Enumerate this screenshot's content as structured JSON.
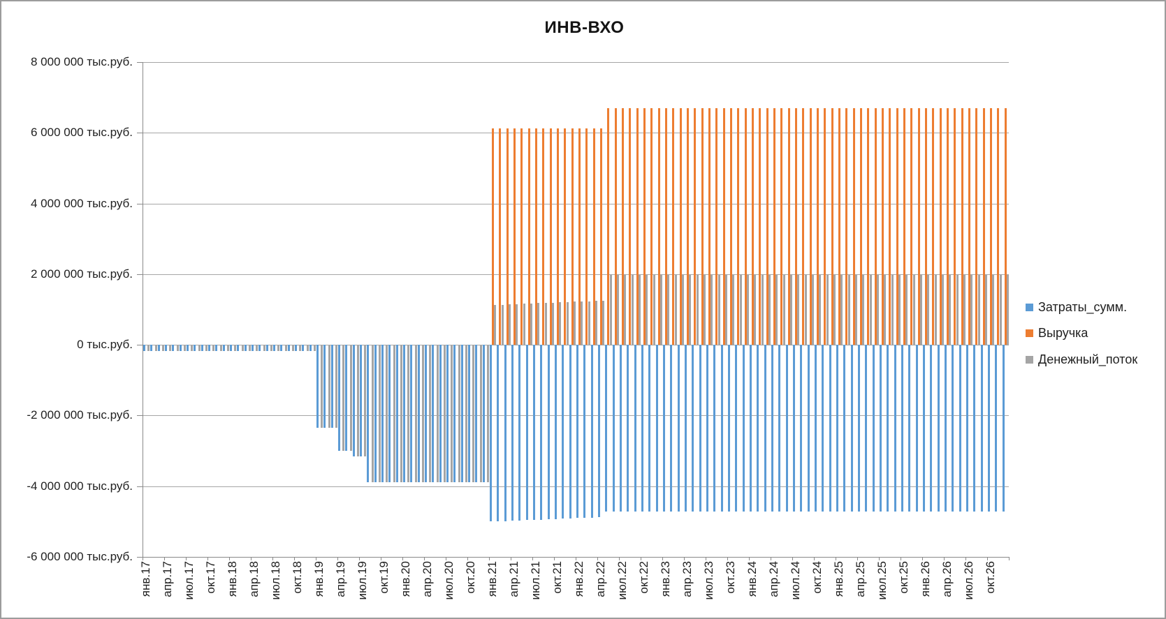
{
  "chart_data": {
    "type": "bar",
    "title": "ИНВ-ВХО",
    "y_unit": "тыс.руб.",
    "ylim": [
      -6000000,
      8000000
    ],
    "y_tick_step": 2000000,
    "grid": "horizontal",
    "legend_position": "right",
    "y_tick_labels": [
      "8 000 000 тыс.руб.",
      "6 000 000 тыс.руб.",
      "4 000 000 тыс.руб.",
      "2 000 000 тыс.руб.",
      "0 тыс.руб.",
      "-2 000 000 тыс.руб.",
      "-4 000 000 тыс.руб.",
      "-6 000 000 тыс.руб."
    ],
    "x_tick_labels": [
      "янв.17",
      "апр.17",
      "июл.17",
      "окт.17",
      "янв.18",
      "апр.18",
      "июл.18",
      "окт.18",
      "янв.19",
      "апр.19",
      "июл.19",
      "окт.19",
      "янв.20",
      "апр.20",
      "июл.20",
      "окт.20",
      "янв.21",
      "апр.21",
      "июл.21",
      "окт.21",
      "янв.22",
      "апр.22",
      "июл.22",
      "окт.22",
      "янв.23",
      "апр.23",
      "июл.23",
      "окт.23",
      "янв.24",
      "апр.24",
      "июл.24",
      "окт.24",
      "янв.25",
      "апр.25",
      "июл.25",
      "окт.25",
      "янв.26",
      "апр.26",
      "июл.26",
      "окт.26"
    ],
    "categories": [
      "янв.17",
      "фев.17",
      "мар.17",
      "апр.17",
      "май.17",
      "июн.17",
      "июл.17",
      "авг.17",
      "сен.17",
      "окт.17",
      "ноя.17",
      "дек.17",
      "янв.18",
      "фев.18",
      "мар.18",
      "апр.18",
      "май.18",
      "июн.18",
      "июл.18",
      "авг.18",
      "сен.18",
      "окт.18",
      "ноя.18",
      "дек.18",
      "янв.19",
      "фев.19",
      "мар.19",
      "апр.19",
      "май.19",
      "июн.19",
      "июл.19",
      "авг.19",
      "сен.19",
      "окт.19",
      "ноя.19",
      "дек.19",
      "янв.20",
      "фев.20",
      "мар.20",
      "апр.20",
      "май.20",
      "июн.20",
      "июл.20",
      "авг.20",
      "сен.20",
      "окт.20",
      "ноя.20",
      "дек.20",
      "янв.21",
      "фев.21",
      "мар.21",
      "апр.21",
      "май.21",
      "июн.21",
      "июл.21",
      "авг.21",
      "сен.21",
      "окт.21",
      "ноя.21",
      "дек.21",
      "янв.22",
      "фев.22",
      "мар.22",
      "апр.22",
      "май.22",
      "июн.22",
      "июл.22",
      "авг.22",
      "сен.22",
      "окт.22",
      "ноя.22",
      "дек.22",
      "янв.23",
      "фев.23",
      "мар.23",
      "апр.23",
      "май.23",
      "июн.23",
      "июл.23",
      "авг.23",
      "сен.23",
      "окт.23",
      "ноя.23",
      "дек.23",
      "янв.24",
      "фев.24",
      "мар.24",
      "апр.24",
      "май.24",
      "июн.24",
      "июл.24",
      "авг.24",
      "сен.24",
      "окт.24",
      "ноя.24",
      "дек.24",
      "янв.25",
      "фев.25",
      "мар.25",
      "апр.25",
      "май.25",
      "июн.25",
      "июл.25",
      "авг.25",
      "сен.25",
      "окт.25",
      "ноя.25",
      "дек.25",
      "янв.26",
      "фев.26",
      "мар.26",
      "апр.26",
      "май.26",
      "июн.26",
      "июл.26",
      "авг.26",
      "сен.26",
      "окт.26",
      "ноя.26",
      "дек.26"
    ],
    "series": [
      {
        "name": "Затраты_сумм.",
        "color": "#5B9BD5",
        "values": [
          -180000,
          -180000,
          -180000,
          -180000,
          -180000,
          -180000,
          -180000,
          -180000,
          -180000,
          -180000,
          -180000,
          -180000,
          -180000,
          -180000,
          -180000,
          -180000,
          -180000,
          -180000,
          -180000,
          -180000,
          -180000,
          -180000,
          -180000,
          -180000,
          -2350000,
          -2350000,
          -2350000,
          -3000000,
          -3000000,
          -3160000,
          -3160000,
          -3880000,
          -3880000,
          -3880000,
          -3880000,
          -3880000,
          -3880000,
          -3880000,
          -3880000,
          -3880000,
          -3880000,
          -3880000,
          -3880000,
          -3880000,
          -3880000,
          -3880000,
          -3880000,
          -3880000,
          -5000000,
          -4992000,
          -4984000,
          -4976000,
          -4968000,
          -4960000,
          -4952000,
          -4944000,
          -4936000,
          -4928000,
          -4920000,
          -4912000,
          -4904000,
          -4896000,
          -4888000,
          -4880000,
          -4720000,
          -4720000,
          -4720000,
          -4720000,
          -4720000,
          -4720000,
          -4720000,
          -4720000,
          -4720000,
          -4720000,
          -4720000,
          -4720000,
          -4720000,
          -4720000,
          -4720000,
          -4720000,
          -4720000,
          -4720000,
          -4720000,
          -4720000,
          -4720000,
          -4720000,
          -4720000,
          -4720000,
          -4720000,
          -4720000,
          -4720000,
          -4720000,
          -4720000,
          -4720000,
          -4720000,
          -4720000,
          -4720000,
          -4720000,
          -4720000,
          -4720000,
          -4720000,
          -4720000,
          -4720000,
          -4720000,
          -4720000,
          -4720000,
          -4720000,
          -4720000,
          -4720000,
          -4720000,
          -4720000,
          -4720000,
          -4720000,
          -4720000,
          -4720000,
          -4720000,
          -4720000,
          -4720000,
          -4720000,
          -4720000
        ]
      },
      {
        "name": "Выручка",
        "color": "#ED7D31",
        "values": [
          0,
          0,
          0,
          0,
          0,
          0,
          0,
          0,
          0,
          0,
          0,
          0,
          0,
          0,
          0,
          0,
          0,
          0,
          0,
          0,
          0,
          0,
          0,
          0,
          0,
          0,
          0,
          0,
          0,
          0,
          0,
          0,
          0,
          0,
          0,
          0,
          0,
          0,
          0,
          0,
          0,
          0,
          0,
          0,
          0,
          0,
          0,
          0,
          6130000,
          6130000,
          6130000,
          6130000,
          6130000,
          6130000,
          6130000,
          6130000,
          6130000,
          6130000,
          6130000,
          6130000,
          6130000,
          6130000,
          6130000,
          6130000,
          6690000,
          6690000,
          6690000,
          6690000,
          6690000,
          6690000,
          6690000,
          6690000,
          6690000,
          6690000,
          6690000,
          6690000,
          6690000,
          6690000,
          6690000,
          6690000,
          6690000,
          6690000,
          6690000,
          6690000,
          6690000,
          6690000,
          6690000,
          6690000,
          6690000,
          6690000,
          6690000,
          6690000,
          6690000,
          6690000,
          6690000,
          6690000,
          6690000,
          6690000,
          6690000,
          6690000,
          6690000,
          6690000,
          6690000,
          6690000,
          6690000,
          6690000,
          6690000,
          6690000,
          6690000,
          6690000,
          6690000,
          6690000,
          6690000,
          6690000,
          6690000,
          6690000,
          6690000,
          6690000,
          6690000,
          6690000
        ]
      },
      {
        "name": "Денежный_поток",
        "color": "#A5A5A5",
        "values": [
          -180000,
          -180000,
          -180000,
          -180000,
          -180000,
          -180000,
          -180000,
          -180000,
          -180000,
          -180000,
          -180000,
          -180000,
          -180000,
          -180000,
          -180000,
          -180000,
          -180000,
          -180000,
          -180000,
          -180000,
          -180000,
          -180000,
          -180000,
          -180000,
          -2350000,
          -2350000,
          -2350000,
          -3000000,
          -3000000,
          -3160000,
          -3160000,
          -3880000,
          -3880000,
          -3880000,
          -3880000,
          -3880000,
          -3880000,
          -3880000,
          -3880000,
          -3880000,
          -3880000,
          -3880000,
          -3880000,
          -3880000,
          -3880000,
          -3880000,
          -3880000,
          -3880000,
          1130000,
          1138000,
          1146000,
          1154000,
          1162000,
          1170000,
          1178000,
          1186000,
          1194000,
          1202000,
          1210000,
          1218000,
          1226000,
          1234000,
          1242000,
          1250000,
          1970000,
          1970000,
          1970000,
          1970000,
          1970000,
          1970000,
          1970000,
          1970000,
          1970000,
          1970000,
          1970000,
          1970000,
          1970000,
          1970000,
          1970000,
          1970000,
          1970000,
          1970000,
          1970000,
          1970000,
          1970000,
          1970000,
          1970000,
          1970000,
          1970000,
          1970000,
          1970000,
          1970000,
          1970000,
          1970000,
          1970000,
          1970000,
          1970000,
          1970000,
          1970000,
          1970000,
          1970000,
          1970000,
          1970000,
          1970000,
          1970000,
          1970000,
          1970000,
          1970000,
          1970000,
          1970000,
          1970000,
          1970000,
          1970000,
          1970000,
          1970000,
          1970000,
          1970000,
          1970000,
          1970000,
          1970000
        ]
      }
    ]
  }
}
